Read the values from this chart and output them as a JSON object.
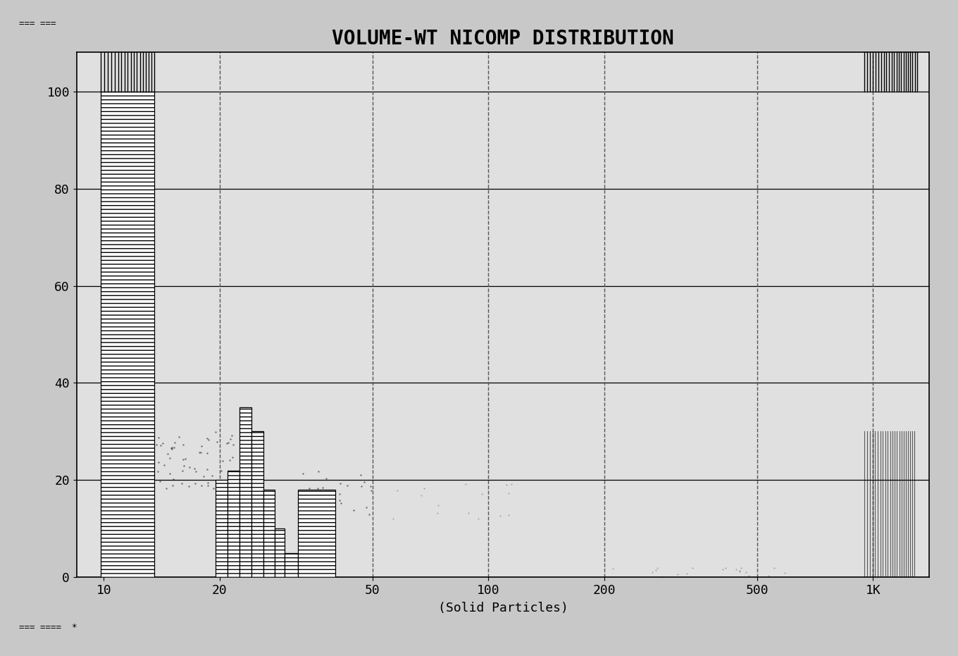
{
  "title": "VOLUME-WT NICOMP DISTRIBUTION",
  "xlabel": "(Solid Particles)",
  "title_fontsize": 20,
  "xlabel_fontsize": 13,
  "fig_facecolor": "#c8c8c8",
  "ax_facecolor": "#e0e0e0",
  "ylim": [
    0,
    108
  ],
  "yticks": [
    0,
    20,
    40,
    60,
    80,
    100
  ],
  "ytick_labels": [
    "0",
    "20",
    "40",
    "60",
    "80",
    "100"
  ],
  "xtick_labels": [
    "10",
    "20",
    "50",
    "100",
    "200",
    "500",
    "1K"
  ],
  "xtick_positions": [
    10,
    20,
    50,
    100,
    200,
    500,
    1000
  ],
  "xlim": [
    8.5,
    1400
  ],
  "bars": [
    {
      "x_left": 9.8,
      "x_right": 13.5,
      "height": 100
    },
    {
      "x_left": 19.5,
      "x_right": 21.0,
      "height": 20
    },
    {
      "x_left": 21.0,
      "x_right": 22.5,
      "height": 22
    },
    {
      "x_left": 22.5,
      "x_right": 24.2,
      "height": 35
    },
    {
      "x_left": 24.2,
      "x_right": 26.0,
      "height": 30
    },
    {
      "x_left": 26.0,
      "x_right": 27.8,
      "height": 18
    },
    {
      "x_left": 27.8,
      "x_right": 29.5,
      "height": 10
    },
    {
      "x_left": 29.5,
      "x_right": 32.0,
      "height": 5
    },
    {
      "x_left": 32.0,
      "x_right": 40.0,
      "height": 18
    }
  ],
  "bar_facecolor": "white",
  "bar_edgecolor": "black",
  "bar_hatch": "---",
  "grid_v_positions": [
    20,
    50,
    100,
    200,
    500,
    1000
  ],
  "grid_h_color": "#000000",
  "grid_v_color": "#555555",
  "top_ticks_left_x_start": 9.8,
  "top_ticks_left_x_end": 13.5,
  "top_ticks_right_x_start": 950,
  "top_ticks_right_x_end": 1300,
  "scatter1_x_min": 13.5,
  "scatter1_x_max": 22.0,
  "scatter1_y_min": 18,
  "scatter1_y_max": 30,
  "scatter1_n": 60,
  "scatter2_x_min": 32,
  "scatter2_x_max": 50,
  "scatter2_y_min": 12,
  "scatter2_y_max": 22,
  "scatter2_n": 30,
  "scatter3_x_min": 50,
  "scatter3_x_max": 120,
  "scatter3_y_min": 12,
  "scatter3_y_max": 20,
  "scatter3_n": 15,
  "scatter4_x_min": 170,
  "scatter4_x_max": 600,
  "scatter4_y_min": 0,
  "scatter4_y_max": 2,
  "scatter4_n": 20,
  "fig_text_top": "=== ===",
  "fig_text_bottom": "=== ====  *",
  "fig_text_fontsize": 9
}
